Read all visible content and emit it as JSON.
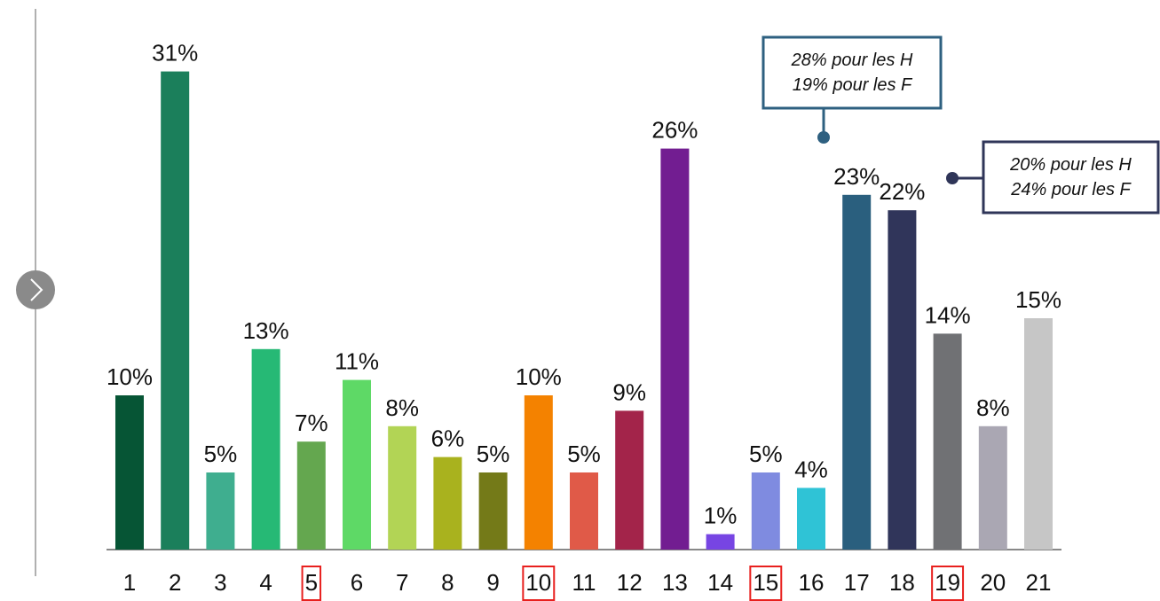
{
  "chart_data": {
    "type": "bar",
    "categories": [
      "1",
      "2",
      "3",
      "4",
      "5",
      "6",
      "7",
      "8",
      "9",
      "10",
      "11",
      "12",
      "13",
      "14",
      "15",
      "16",
      "17",
      "18",
      "19",
      "20",
      "21"
    ],
    "values": [
      10,
      31,
      5,
      13,
      7,
      11,
      8,
      6,
      5,
      10,
      5,
      9,
      26,
      1,
      5,
      4,
      23,
      22,
      14,
      8,
      15
    ],
    "value_labels": [
      "10%",
      "31%",
      "5%",
      "13%",
      "7%",
      "11%",
      "8%",
      "6%",
      "5%",
      "10%",
      "5%",
      "9%",
      "26%",
      "1%",
      "5%",
      "4%",
      "23%",
      "22%",
      "14%",
      "8%",
      "15%"
    ],
    "colors": [
      "#065535",
      "#1b7f5b",
      "#3fae8f",
      "#26b975",
      "#64a74f",
      "#5ed966",
      "#b2d455",
      "#a9b21e",
      "#747a18",
      "#f48200",
      "#e05a48",
      "#a3244a",
      "#721d91",
      "#7745e3",
      "#7f8be0",
      "#2fc3d6",
      "#2a5f7e",
      "#30355a",
      "#707174",
      "#aaa7b3",
      "#c6c6c6"
    ],
    "highlighted_categories": [
      "5",
      "10",
      "15",
      "19"
    ],
    "highlight_color": "#e8201e",
    "annotations": [
      {
        "lines": [
          "28% pour les H",
          "19% pour les F"
        ],
        "color": "#2e6080"
      },
      {
        "lines": [
          "20% pour les H",
          "24% pour les F"
        ],
        "color": "#2f3558"
      }
    ]
  }
}
